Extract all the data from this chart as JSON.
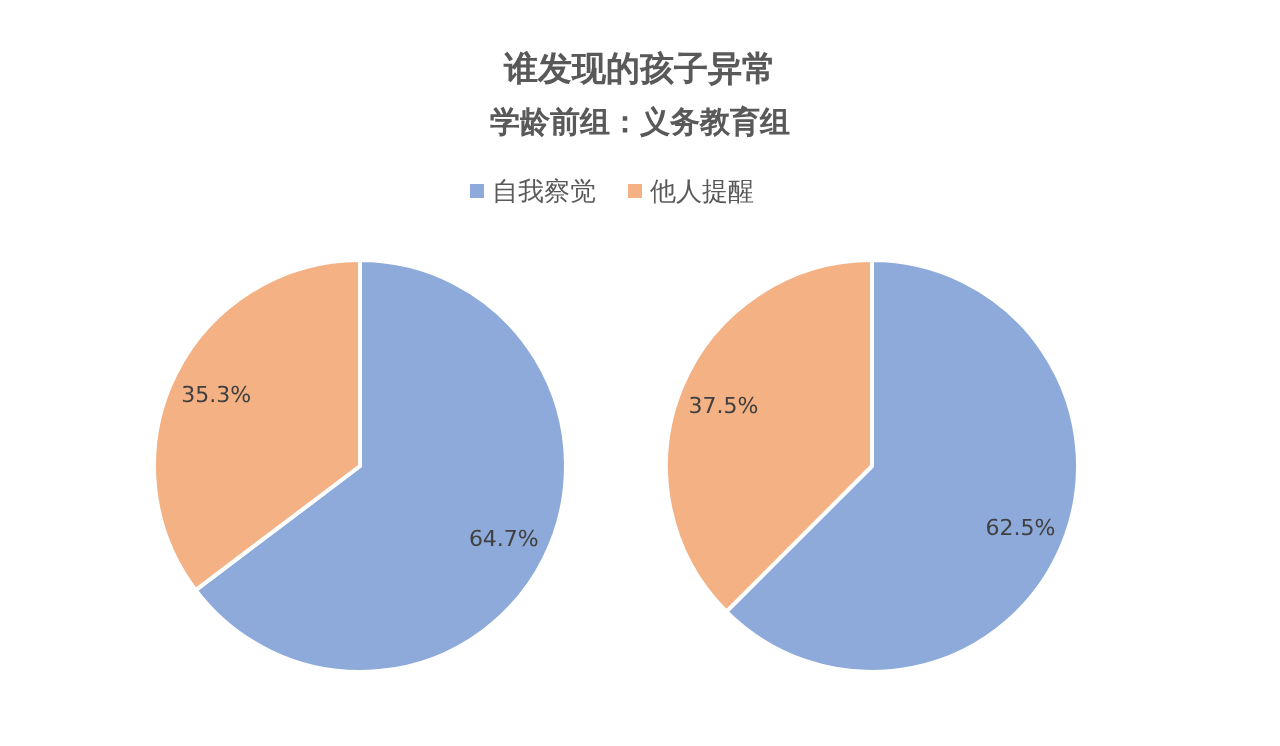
{
  "chart_data": [
    {
      "type": "pie",
      "title": "谁发现的孩子异常",
      "subtitle": "学龄前组：义务教育组",
      "categories": [
        "自我察觉",
        "他人提醒"
      ],
      "values": [
        64.7,
        35.3
      ],
      "value_labels": [
        "64.7%",
        "35.3%"
      ],
      "colors": [
        "#8eaadb",
        "#f4b183"
      ],
      "legend": "top"
    },
    {
      "type": "pie",
      "categories": [
        null,
        null
      ],
      "values": [
        62.5,
        37.5
      ],
      "value_labels": [
        "62.5%",
        "37.5%"
      ],
      "colors": [
        "#8eaadb",
        "#f4b183"
      ]
    }
  ]
}
